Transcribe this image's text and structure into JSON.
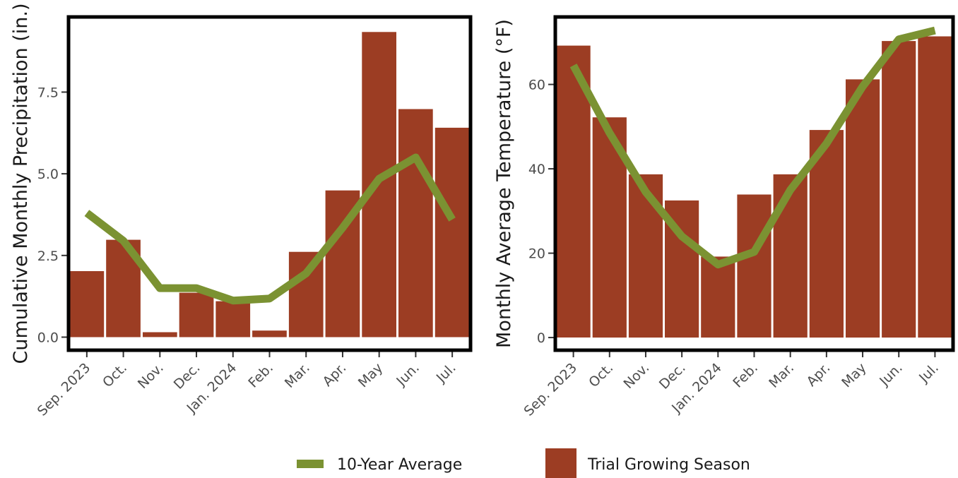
{
  "chart_data": [
    {
      "type": "bar",
      "categories": [
        "Sep. 2023",
        "Oct.",
        "Nov.",
        "Dec.",
        "Jan. 2024",
        "Feb.",
        "Mar.",
        "Apr.",
        "May",
        "Jun.",
        "Jul."
      ],
      "ylabel": "Cumulative Monthly Precipitation (in.)",
      "ylim": [
        -0.4,
        9.8
      ],
      "yticks": [
        0.0,
        2.5,
        5.0,
        7.5
      ],
      "ytick_labels": [
        "0.0",
        "2.5",
        "5.0",
        "7.5"
      ],
      "series": [
        {
          "name": "Trial Growing Season",
          "type": "bar",
          "color": "#9c3d23",
          "values": [
            2.02,
            2.98,
            0.15,
            1.36,
            1.1,
            0.2,
            2.61,
            4.49,
            9.34,
            6.98,
            6.41
          ]
        },
        {
          "name": "10-Year Average",
          "type": "line",
          "color": "#7b9232",
          "values": [
            3.8,
            2.95,
            1.5,
            1.5,
            1.12,
            1.18,
            1.95,
            3.35,
            4.85,
            5.5,
            3.6
          ]
        }
      ]
    },
    {
      "type": "bar",
      "categories": [
        "Sep. 2023",
        "Oct.",
        "Nov.",
        "Dec.",
        "Jan. 2024",
        "Feb.",
        "Mar.",
        "Apr.",
        "May",
        "Jun.",
        "Jul."
      ],
      "ylabel": "Monthly Average Temperature  (°F)",
      "ylim": [
        -3,
        76
      ],
      "yticks": [
        0,
        20,
        40,
        60
      ],
      "ytick_labels": [
        "0",
        "20",
        "40",
        "60"
      ],
      "series": [
        {
          "name": "Trial Growing Season",
          "type": "bar",
          "color": "#9c3d23",
          "values": [
            69.2,
            52.2,
            38.7,
            32.5,
            19.2,
            33.9,
            38.7,
            49.2,
            61.2,
            70.3,
            71.4
          ]
        },
        {
          "name": "10-Year Average",
          "type": "line",
          "color": "#7b9232",
          "values": [
            64.5,
            48.5,
            34.5,
            24,
            17.3,
            20.3,
            35,
            46,
            59.5,
            70.7,
            72.8
          ]
        }
      ]
    }
  ],
  "legend": {
    "position": "bottom",
    "items": [
      {
        "label": "10-Year Average",
        "kind": "line",
        "color": "#7b9232"
      },
      {
        "label": "Trial Growing Season",
        "kind": "box",
        "color": "#9c3d23"
      }
    ]
  }
}
